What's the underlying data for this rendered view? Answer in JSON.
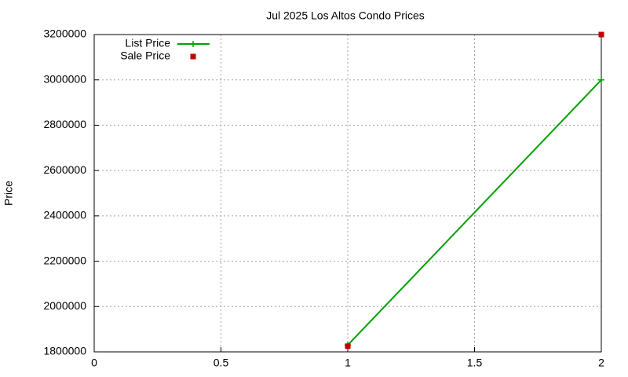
{
  "chart_data": {
    "type": "line",
    "title": "Jul 2025 Los Altos Condo Prices",
    "ylabel": "Price",
    "x": [
      1,
      2
    ],
    "series": [
      {
        "name": "List Price",
        "color": "#00a000",
        "marker": "plus",
        "line": true,
        "values": [
          1830000,
          3000000
        ]
      },
      {
        "name": "Sale Price",
        "color": "#c00000",
        "marker": "square",
        "line": false,
        "values": [
          1825000,
          3200000
        ]
      }
    ],
    "xlim": [
      0,
      2
    ],
    "xticks": [
      0,
      0.5,
      1,
      1.5,
      2
    ],
    "ylim": [
      1800000,
      3200000
    ],
    "yticks": [
      1800000,
      2000000,
      2200000,
      2400000,
      2600000,
      2800000,
      3000000,
      3200000
    ],
    "grid": true,
    "legend": "top-left"
  }
}
